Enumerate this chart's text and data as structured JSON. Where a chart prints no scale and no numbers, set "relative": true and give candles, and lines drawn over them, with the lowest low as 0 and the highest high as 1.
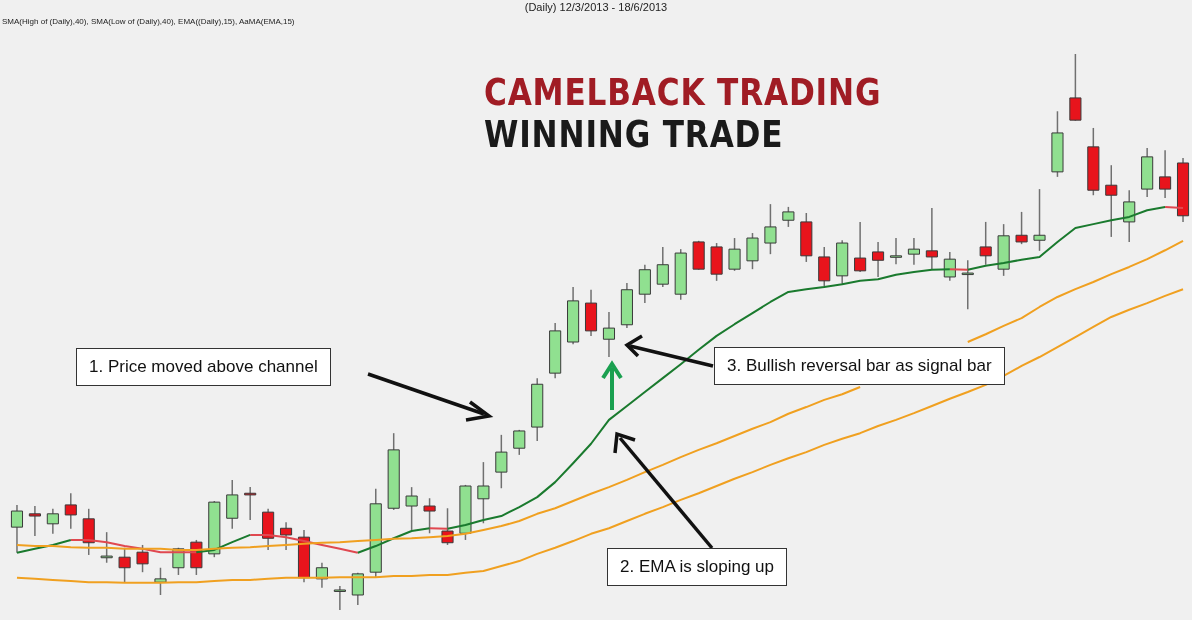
{
  "chart_data": {
    "type": "candlestick",
    "title": "CAMELBACK TRADING",
    "subtitle": "WINNING TRADE",
    "annotations": [
      "(Daily)  12/3/2013 - 18/6/2013",
      "SMA(High of (Daily),40), SMA(Low of (Daily),40), EMA((Daily),15), AaMA(EMA,15)",
      "1. Price moved above channel",
      "2. EMA is sloping  up",
      "3. Bullish  reversal bar as signal bar"
    ],
    "relative": true,
    "legend": false,
    "categories": [
      null,
      null,
      null,
      null,
      null,
      null,
      null,
      null,
      null,
      null,
      null,
      null,
      null,
      null,
      null,
      null,
      null,
      null,
      null,
      null,
      null,
      null,
      null,
      null,
      null,
      null,
      null,
      null,
      null,
      null,
      null,
      null,
      null,
      null,
      null,
      null,
      null,
      null,
      null,
      null,
      null,
      null,
      null,
      null,
      null,
      null,
      null,
      null,
      null,
      null,
      null,
      null,
      null,
      null,
      null,
      null,
      null,
      null,
      null,
      null,
      null,
      null,
      null,
      null,
      null,
      null
    ],
    "ohlc": [
      [
        0.149,
        0.189,
        0.103,
        0.178
      ],
      [
        0.173,
        0.187,
        0.133,
        0.169
      ],
      [
        0.155,
        0.182,
        0.137,
        0.173
      ],
      [
        0.189,
        0.21,
        0.146,
        0.171
      ],
      [
        0.164,
        0.182,
        0.099,
        0.121
      ],
      [
        0.094,
        0.14,
        0.085,
        0.097
      ],
      [
        0.095,
        0.112,
        0.049,
        0.076
      ],
      [
        0.104,
        0.117,
        0.068,
        0.083
      ],
      [
        0.05,
        0.076,
        0.027,
        0.056
      ],
      [
        0.076,
        0.112,
        0.063,
        0.11
      ],
      [
        0.122,
        0.126,
        0.063,
        0.076
      ],
      [
        0.101,
        0.196,
        0.095,
        0.194
      ],
      [
        0.165,
        0.234,
        0.146,
        0.207
      ],
      [
        0.21,
        0.221,
        0.162,
        0.207
      ],
      [
        0.176,
        0.182,
        0.108,
        0.129
      ],
      [
        0.147,
        0.158,
        0.108,
        0.135
      ],
      [
        0.131,
        0.144,
        0.05,
        0.058
      ],
      [
        0.056,
        0.085,
        0.04,
        0.076
      ],
      [
        0.036,
        0.043,
        0,
        0.036
      ],
      [
        0.027,
        0.067,
        0.009,
        0.065
      ],
      [
        0.068,
        0.218,
        0.058,
        0.191
      ],
      [
        0.183,
        0.318,
        0.18,
        0.288
      ],
      [
        0.187,
        0.221,
        0.144,
        0.205
      ],
      [
        0.187,
        0.201,
        0.138,
        0.178
      ],
      [
        0.142,
        0.183,
        0.117,
        0.121
      ],
      [
        0.138,
        0.225,
        0.126,
        0.223
      ],
      [
        0.2,
        0.266,
        0.156,
        0.223
      ],
      [
        0.248,
        0.315,
        0.219,
        0.284
      ],
      [
        0.291,
        0.324,
        0.279,
        0.322
      ],
      [
        0.329,
        0.417,
        0.304,
        0.406
      ],
      [
        0.426,
        0.516,
        0.417,
        0.502
      ],
      [
        0.482,
        0.581,
        0.478,
        0.556
      ],
      [
        0.552,
        0.576,
        0.493,
        0.502
      ],
      [
        0.487,
        0.536,
        0.455,
        0.507
      ],
      [
        0.513,
        0.588,
        0.507,
        0.576
      ],
      [
        0.568,
        0.621,
        0.552,
        0.612
      ],
      [
        0.586,
        0.653,
        0.581,
        0.621
      ],
      [
        0.568,
        0.649,
        0.558,
        0.642
      ],
      [
        0.662,
        0.664,
        0.612,
        0.613
      ],
      [
        0.653,
        0.66,
        0.592,
        0.604
      ],
      [
        0.613,
        0.669,
        0.61,
        0.649
      ],
      [
        0.628,
        0.678,
        0.613,
        0.669
      ],
      [
        0.66,
        0.73,
        0.64,
        0.689
      ],
      [
        0.701,
        0.725,
        0.689,
        0.716
      ],
      [
        0.698,
        0.714,
        0.626,
        0.637
      ],
      [
        0.635,
        0.653,
        0.579,
        0.592
      ],
      [
        0.601,
        0.665,
        0.585,
        0.66
      ],
      [
        0.633,
        0.698,
        0.608,
        0.61
      ],
      [
        0.644,
        0.662,
        0.599,
        0.629
      ],
      [
        0.637,
        0.669,
        0.622,
        0.637
      ],
      [
        0.64,
        0.669,
        0.621,
        0.649
      ],
      [
        0.646,
        0.723,
        0.612,
        0.635
      ],
      [
        0.599,
        0.644,
        0.592,
        0.631
      ],
      [
        0.606,
        0.629,
        0.541,
        0.606
      ],
      [
        0.653,
        0.698,
        0.621,
        0.637
      ],
      [
        0.613,
        0.694,
        0.601,
        0.673
      ],
      [
        0.674,
        0.716,
        0.658,
        0.662
      ],
      [
        0.665,
        0.757,
        0.646,
        0.674
      ],
      [
        0.788,
        0.897,
        0.779,
        0.858
      ],
      [
        0.921,
        1,
        0.88,
        0.881
      ],
      [
        0.833,
        0.867,
        0.746,
        0.755
      ],
      [
        0.764,
        0.8,
        0.671,
        0.746
      ],
      [
        0.698,
        0.755,
        0.662,
        0.734
      ],
      [
        0.757,
        0.831,
        0.743,
        0.815
      ],
      [
        0.779,
        0.827,
        0.741,
        0.757
      ],
      [
        0.804,
        0.813,
        0.698,
        0.709
      ]
    ],
    "colors": [
      "#90e090",
      "#e8141c",
      "#90e090",
      "#e8141c",
      "#e8141c",
      "#90e090",
      "#e8141c",
      "#e8141c",
      "#90e090",
      "#90e090",
      "#e8141c",
      "#90e090",
      "#90e090",
      "#e8141c",
      "#e8141c",
      "#e8141c",
      "#e8141c",
      "#90e090",
      "#90e090",
      "#90e090",
      "#90e090",
      "#90e090",
      "#90e090",
      "#e8141c",
      "#e8141c",
      "#90e090",
      "#90e090",
      "#90e090",
      "#90e090",
      "#90e090",
      "#90e090",
      "#90e090",
      "#e8141c",
      "#90e090",
      "#90e090",
      "#90e090",
      "#90e090",
      "#90e090",
      "#e8141c",
      "#e8141c",
      "#90e090",
      "#90e090",
      "#90e090",
      "#90e090",
      "#e8141c",
      "#e8141c",
      "#90e090",
      "#e8141c",
      "#e8141c",
      "#90e090",
      "#90e090",
      "#e8141c",
      "#90e090",
      "#90e090",
      "#e8141c",
      "#90e090",
      "#e8141c",
      "#90e090",
      "#90e090",
      "#e8141c",
      "#e8141c",
      "#e8141c",
      "#90e090",
      "#90e090",
      "#e8141c",
      "#e8141c"
    ],
    "series": [
      {
        "type": "line",
        "color": "#f0a020",
        "values": [
          0.117,
          0.115,
          0.115,
          0.113,
          0.112,
          0.112,
          0.11,
          0.11,
          0.11,
          0.108,
          0.108,
          0.11,
          0.112,
          0.113,
          0.115,
          0.117,
          0.119,
          0.121,
          0.122,
          0.124,
          0.126,
          0.128,
          0.129,
          0.131,
          0.133,
          0.137,
          0.144,
          0.151,
          0.16,
          0.173,
          0.183,
          0.196,
          0.209,
          0.221,
          0.234,
          0.248,
          0.261,
          0.275,
          0.288,
          0.3,
          0.313,
          0.326,
          0.338,
          0.353,
          0.365,
          0.378,
          0.388,
          0.401,
          null,
          null,
          null,
          null,
          null,
          0.482,
          0.496,
          0.511,
          0.525,
          0.545,
          0.563,
          0.577,
          0.59,
          0.604,
          0.617,
          0.631,
          0.647,
          0.664
        ]
      },
      {
        "type": "line",
        "color": "#f0a020",
        "values": [
          0.058,
          0.056,
          0.054,
          0.052,
          0.05,
          0.05,
          0.049,
          0.049,
          0.049,
          0.05,
          0.05,
          0.052,
          0.054,
          0.054,
          0.056,
          0.058,
          0.058,
          0.058,
          0.059,
          0.059,
          0.059,
          0.061,
          0.061,
          0.063,
          0.063,
          0.067,
          0.07,
          0.079,
          0.088,
          0.101,
          0.112,
          0.124,
          0.137,
          0.147,
          0.16,
          0.173,
          0.185,
          0.198,
          0.21,
          0.223,
          0.236,
          0.248,
          0.261,
          0.273,
          0.284,
          0.297,
          0.308,
          0.318,
          0.331,
          0.342,
          0.354,
          0.367,
          0.38,
          0.392,
          0.405,
          0.421,
          0.439,
          0.455,
          0.473,
          0.491,
          0.509,
          0.527,
          0.54,
          0.552,
          0.565,
          0.577
        ]
      },
      {
        "type": "line",
        "color": "#1a7a2e",
        "values": [
          0.103,
          0.11,
          0.117,
          0.126,
          null,
          null,
          null,
          null,
          null,
          null,
          0.104,
          0.108,
          0.122,
          0.135,
          null,
          null,
          null,
          null,
          null,
          0.103,
          0.115,
          0.129,
          0.142,
          0.147,
          null,
          null,
          null,
          null,
          null,
          null,
          null,
          null,
          null,
          null,
          null,
          null,
          null,
          null,
          null,
          null,
          null,
          null,
          null,
          null,
          null,
          null,
          null,
          null,
          null,
          null,
          null,
          null,
          null,
          0.612,
          0.619,
          0.624,
          0.63,
          0.635,
          0.662,
          0.687,
          0.694,
          0.701,
          0.707,
          0.719,
          0.725,
          null
        ]
      },
      {
        "type": "line",
        "color": "#1a7a2e",
        "values": [
          null,
          null,
          null,
          null,
          null,
          null,
          null,
          null,
          null,
          null,
          null,
          null,
          null,
          null,
          null,
          null,
          null,
          null,
          null,
          null,
          null,
          null,
          null,
          null,
          0.146,
          0.153,
          0.162,
          0.169,
          0.185,
          0.203,
          0.23,
          0.264,
          0.299,
          0.342,
          0.367,
          0.392,
          0.417,
          0.442,
          0.468,
          0.493,
          0.514,
          0.534,
          0.554,
          0.572,
          0.577,
          0.581,
          0.586,
          0.592,
          0.595,
          0.603,
          0.608,
          0.612,
          0.613,
          null,
          null,
          null,
          null,
          null,
          null,
          null,
          null,
          null,
          null,
          null,
          null,
          null
        ]
      },
      {
        "type": "line",
        "color": "#e04850",
        "values": [
          null,
          null,
          null,
          0.126,
          0.126,
          0.122,
          0.115,
          0.11,
          0.104,
          0.104,
          0.104,
          null,
          null,
          0.135,
          0.135,
          0.131,
          0.124,
          0.117,
          0.11,
          0.103,
          null,
          null,
          null,
          0.147,
          0.146,
          null,
          null,
          null,
          null,
          null,
          null,
          null,
          null,
          null,
          null,
          null,
          null,
          null,
          null,
          null,
          null,
          null,
          null,
          null,
          null,
          null,
          null,
          null,
          null,
          null,
          null,
          null,
          0.613,
          0.612,
          null,
          null,
          null,
          null,
          null,
          null,
          null,
          null,
          null,
          null,
          0.725,
          0.723
        ]
      }
    ]
  }
}
